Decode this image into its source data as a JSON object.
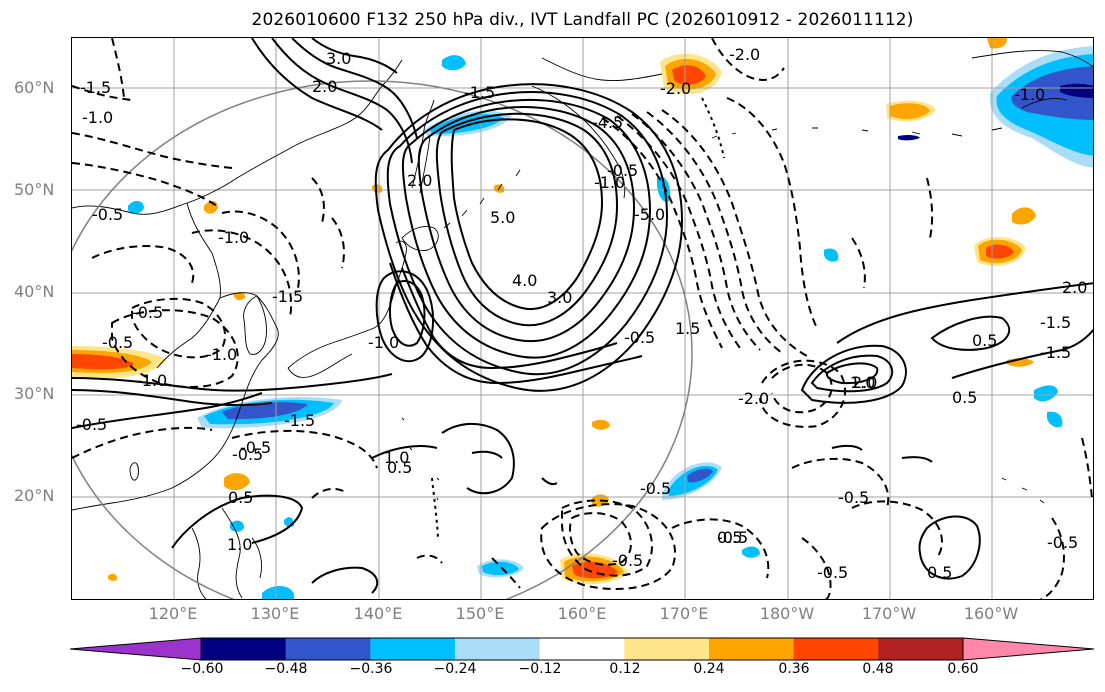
{
  "title": "2026010600 F132 250 hPa div., IVT Landfall PC (2026010912 - 2026011112)",
  "map": {
    "lat_labels": [
      "60°N",
      "50°N",
      "40°N",
      "30°N",
      "20°N"
    ],
    "lon_labels": [
      "120°E",
      "130°E",
      "140°E",
      "150°E",
      "160°E",
      "170°E",
      "180°W",
      "170°W",
      "160°W"
    ],
    "contour_labels": [
      "3.0",
      "2.0",
      "-1.5",
      "-1.0",
      "-0.5",
      "-1.0",
      "-0.5",
      "2.0",
      "5.0",
      "4.0",
      "3.0",
      "-1.5",
      "-5.0",
      "-4.5",
      "-2.0",
      "-2.0",
      "-1.0",
      "-0.5",
      "-1.5",
      "-1.0",
      "-0.5",
      "1.5",
      "-0.5",
      "-1.0",
      "-1.5",
      "-0.5",
      "-1.0",
      "-0.5",
      "0.5",
      "0.5",
      "1.0",
      "-0.5",
      "-2.0",
      "-0.5",
      "-1.5",
      "2.0",
      "1.0",
      "0.5",
      "0.5",
      "-0.5",
      "2.0",
      "-1.5",
      "-1.0",
      "-0.5",
      "-0.5",
      "-0.5",
      "0.5",
      "-0.5",
      "0.5",
      "1.0"
    ]
  },
  "colorbar": {
    "ticks": [
      "−0.60",
      "−0.48",
      "−0.36",
      "−0.24",
      "−0.12",
      "0.12",
      "0.24",
      "0.36",
      "0.48",
      "0.60"
    ],
    "colors": [
      "#9933cc",
      "#000080",
      "#3355cc",
      "#00bfff",
      "#aaddf8",
      "#ffffff",
      "#ffe58a",
      "#ffa500",
      "#ff4500",
      "#b22222",
      "#ff88aa"
    ]
  },
  "colors": {
    "shading_blue": "#00bfff",
    "shading_darkblue": "#3355cc",
    "shading_orange": "#ffa500",
    "shading_red": "#ff4500",
    "shading_yellow": "#ffe58a",
    "grid": "#a0a0a0"
  }
}
